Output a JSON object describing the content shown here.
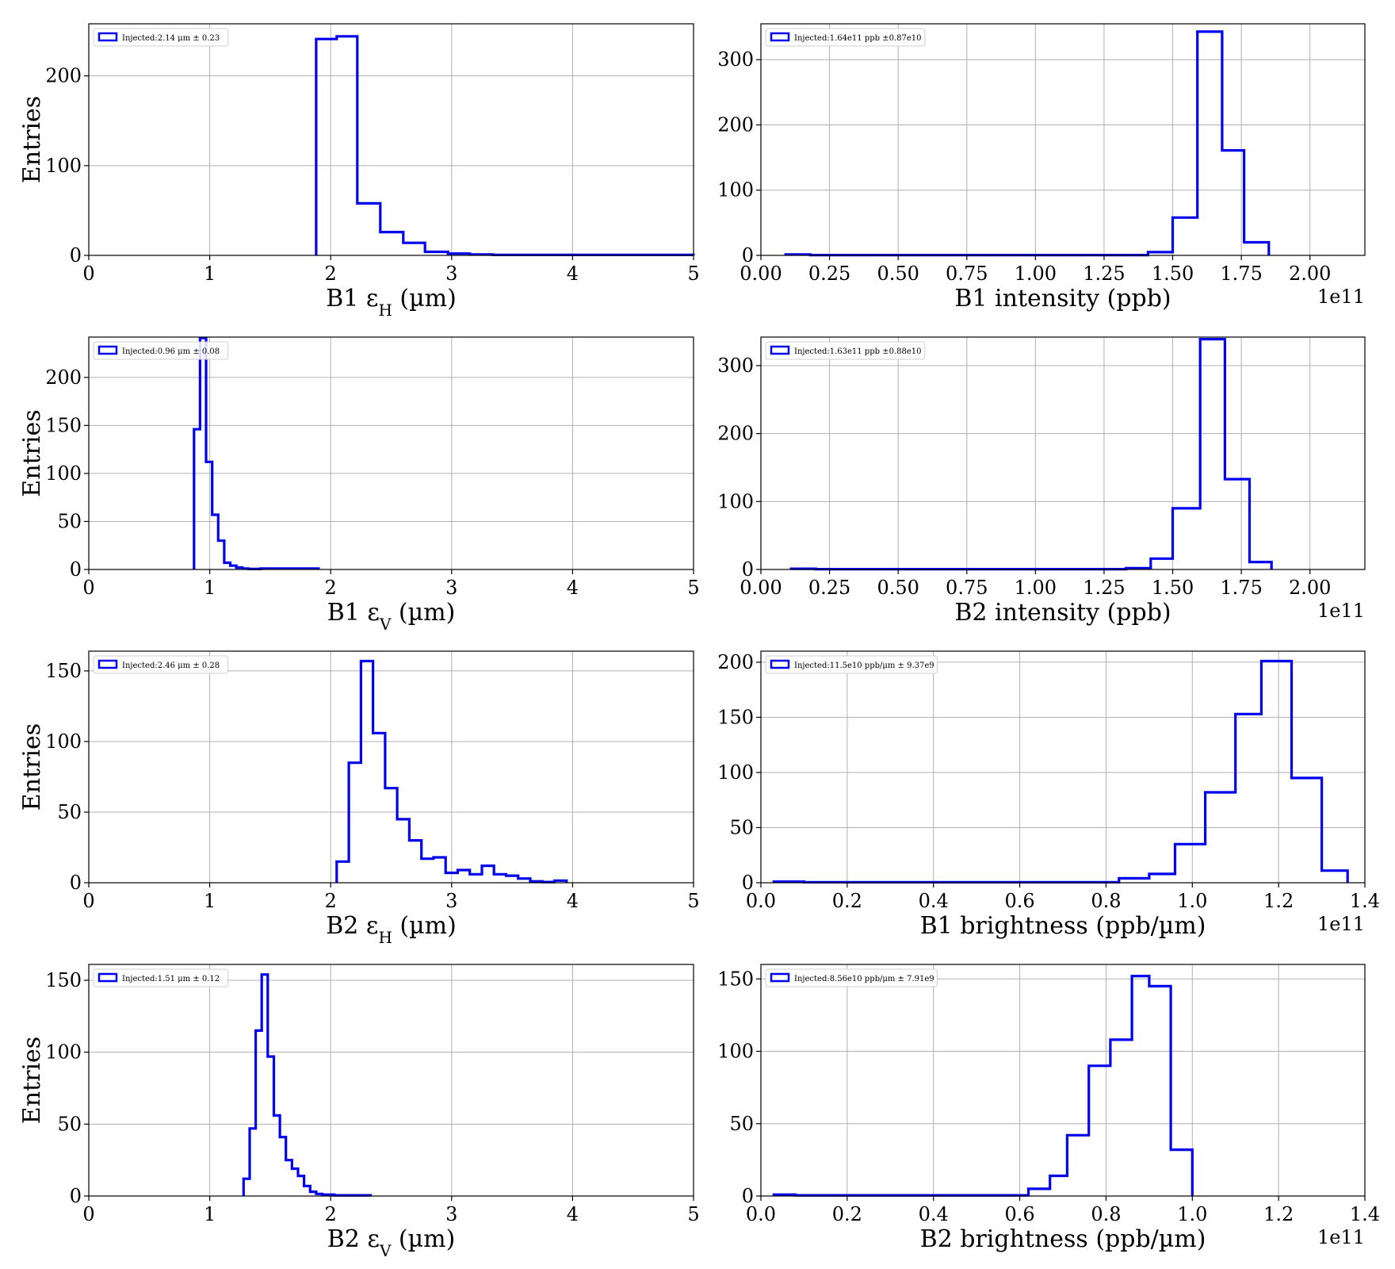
{
  "figure": {
    "legend_color": "#0000ee",
    "grid_color": "#b0b0b0"
  },
  "chart_data": [
    {
      "id": "b1-eps-h",
      "type": "histogram",
      "xlabel": "B1 εH (µm)",
      "xlabel_main": "B1 ε",
      "xlabel_sub": "H",
      "xlabel_unit": " (µm)",
      "ylabel": "Entries",
      "xlim": [
        0,
        5
      ],
      "ylim": [
        0,
        258
      ],
      "xticks": [
        0,
        1,
        2,
        3,
        4,
        5
      ],
      "xtick_labels": [
        "0",
        "1",
        "2",
        "3",
        "4",
        "5"
      ],
      "yticks": [
        0,
        100,
        200
      ],
      "ytick_labels": [
        "0",
        "100",
        "200"
      ],
      "offset_label": "",
      "grid": true,
      "legend_position": "top-left",
      "legend_label": "Injected:2.14 μm ± 0.23",
      "series": [
        {
          "color": "#0000ee",
          "edges": [
            1.88,
            2.05,
            2.22,
            2.41,
            2.6,
            2.78,
            2.97,
            3.15,
            3.34,
            5
          ],
          "values": [
            241,
            244,
            58,
            26,
            14,
            4,
            2,
            1,
            0.5
          ]
        }
      ]
    },
    {
      "id": "b1-intensity",
      "type": "histogram",
      "xlabel": "B1 intensity (ppb)",
      "xlabel_main": "B1 intensity (ppb)",
      "xlabel_sub": "",
      "xlabel_unit": "",
      "ylabel": "",
      "xlim": [
        0,
        2.2
      ],
      "ylim": [
        0,
        355
      ],
      "xticks": [
        0,
        0.25,
        0.5,
        0.75,
        1.0,
        1.25,
        1.5,
        1.75,
        2.0
      ],
      "xtick_labels": [
        "0.00",
        "0.25",
        "0.50",
        "0.75",
        "1.00",
        "1.25",
        "1.50",
        "1.75",
        "2.00"
      ],
      "yticks": [
        0,
        100,
        200,
        300
      ],
      "ytick_labels": [
        "0",
        "100",
        "200",
        "300"
      ],
      "offset_label": "1e11",
      "grid": true,
      "legend_position": "top-left",
      "legend_label": "Injected:1.64e11 ppb ±0.87e10",
      "series": [
        {
          "color": "#0000ee",
          "edges": [
            0.09,
            0.18,
            1.41,
            1.5,
            1.59,
            1.68,
            1.76,
            1.85
          ],
          "values": [
            1.5,
            0.5,
            5,
            58,
            343,
            161,
            20
          ]
        }
      ]
    },
    {
      "id": "b1-eps-v",
      "type": "histogram",
      "xlabel": "B1 εV (µm)",
      "xlabel_main": "B1 ε",
      "xlabel_sub": "V",
      "xlabel_unit": " (µm)",
      "ylabel": "Entries",
      "xlim": [
        0,
        5
      ],
      "ylim": [
        0,
        242
      ],
      "xticks": [
        0,
        1,
        2,
        3,
        4,
        5
      ],
      "xtick_labels": [
        "0",
        "1",
        "2",
        "3",
        "4",
        "5"
      ],
      "yticks": [
        0,
        50,
        100,
        150,
        200
      ],
      "ytick_labels": [
        "0",
        "50",
        "100",
        "150",
        "200"
      ],
      "offset_label": "",
      "grid": true,
      "legend_position": "top-left",
      "legend_label": "Injected:0.96 μm ± 0.08",
      "series": [
        {
          "color": "#0000ee",
          "edges": [
            0.87,
            0.92,
            0.97,
            1.02,
            1.07,
            1.12,
            1.17,
            1.22,
            1.27,
            1.32,
            1.42,
            1.9
          ],
          "values": [
            146,
            241,
            112,
            57,
            30,
            7,
            4,
            2,
            1,
            0.5,
            1
          ]
        }
      ]
    },
    {
      "id": "b2-intensity",
      "type": "histogram",
      "xlabel": "B2 intensity (ppb)",
      "xlabel_main": "B2 intensity (ppb)",
      "xlabel_sub": "",
      "xlabel_unit": "",
      "ylabel": "",
      "xlim": [
        0,
        2.2
      ],
      "ylim": [
        0,
        342
      ],
      "xticks": [
        0,
        0.25,
        0.5,
        0.75,
        1.0,
        1.25,
        1.5,
        1.75,
        2.0
      ],
      "xtick_labels": [
        "0.00",
        "0.25",
        "0.50",
        "0.75",
        "1.00",
        "1.25",
        "1.50",
        "1.75",
        "2.00"
      ],
      "yticks": [
        0,
        100,
        200,
        300
      ],
      "ytick_labels": [
        "0",
        "100",
        "200",
        "300"
      ],
      "offset_label": "1e11",
      "grid": true,
      "legend_position": "top-left",
      "legend_label": "Injected:1.63e11 ppb ±0.88e10",
      "series": [
        {
          "color": "#0000ee",
          "edges": [
            0.11,
            0.2,
            1.33,
            1.42,
            1.5,
            1.6,
            1.69,
            1.78,
            1.86
          ],
          "values": [
            1,
            0.5,
            2,
            16,
            90,
            339,
            133,
            11
          ]
        }
      ]
    },
    {
      "id": "b2-eps-h",
      "type": "histogram",
      "xlabel": "B2 εH (µm)",
      "xlabel_main": "B2 ε",
      "xlabel_sub": "H",
      "xlabel_unit": " (µm)",
      "ylabel": "Entries",
      "xlim": [
        0,
        5
      ],
      "ylim": [
        0,
        164
      ],
      "xticks": [
        0,
        1,
        2,
        3,
        4,
        5
      ],
      "xtick_labels": [
        "0",
        "1",
        "2",
        "3",
        "4",
        "5"
      ],
      "yticks": [
        0,
        50,
        100,
        150
      ],
      "ytick_labels": [
        "0",
        "50",
        "100",
        "150"
      ],
      "offset_label": "",
      "grid": true,
      "legend_position": "top-left",
      "legend_label": "Injected:2.46 μm ± 0.28",
      "series": [
        {
          "color": "#0000ee",
          "edges": [
            2.05,
            2.15,
            2.25,
            2.35,
            2.45,
            2.55,
            2.65,
            2.75,
            2.85,
            2.95,
            3.05,
            3.15,
            3.25,
            3.35,
            3.45,
            3.55,
            3.65,
            3.75,
            3.85,
            3.95
          ],
          "values": [
            15,
            85,
            157,
            106,
            67,
            45,
            30,
            17,
            18,
            7,
            9,
            6,
            12,
            6,
            5,
            3,
            1,
            0.5,
            1.5
          ]
        }
      ]
    },
    {
      "id": "b1-brightness",
      "type": "histogram",
      "xlabel": "B1 brightness (ppb/µm)",
      "xlabel_main": "B1 brightness (ppb/µm)",
      "xlabel_sub": "",
      "xlabel_unit": "",
      "ylabel": "",
      "xlim": [
        0,
        1.4
      ],
      "ylim": [
        0,
        210
      ],
      "xticks": [
        0,
        0.2,
        0.4,
        0.6,
        0.8,
        1.0,
        1.2,
        1.4
      ],
      "xtick_labels": [
        "0.0",
        "0.2",
        "0.4",
        "0.6",
        "0.8",
        "1.0",
        "1.2",
        "1.4"
      ],
      "yticks": [
        0,
        50,
        100,
        150,
        200
      ],
      "ytick_labels": [
        "0",
        "50",
        "100",
        "150",
        "200"
      ],
      "offset_label": "1e11",
      "grid": true,
      "legend_position": "top-left",
      "legend_label": "Injected:11.5e10 ppb/μm ± 9.37e9",
      "series": [
        {
          "color": "#0000ee",
          "edges": [
            0.03,
            0.1,
            0.83,
            0.9,
            0.96,
            1.03,
            1.1,
            1.16,
            1.23,
            1.3,
            1.36
          ],
          "values": [
            1,
            0.5,
            4,
            8,
            35,
            82,
            153,
            201,
            95,
            11
          ]
        }
      ]
    },
    {
      "id": "b2-eps-v",
      "type": "histogram",
      "xlabel": "B2 εV (µm)",
      "xlabel_main": "B2 ε",
      "xlabel_sub": "V",
      "xlabel_unit": " (µm)",
      "ylabel": "Entries",
      "xlim": [
        0,
        5
      ],
      "ylim": [
        0,
        161
      ],
      "xticks": [
        0,
        1,
        2,
        3,
        4,
        5
      ],
      "xtick_labels": [
        "0",
        "1",
        "2",
        "3",
        "4",
        "5"
      ],
      "yticks": [
        0,
        50,
        100,
        150
      ],
      "ytick_labels": [
        "0",
        "50",
        "100",
        "150"
      ],
      "offset_label": "",
      "grid": true,
      "legend_position": "top-left",
      "legend_label": "Injected:1.51 μm ± 0.12",
      "series": [
        {
          "color": "#0000ee",
          "edges": [
            1.28,
            1.33,
            1.38,
            1.43,
            1.48,
            1.53,
            1.58,
            1.63,
            1.68,
            1.73,
            1.78,
            1.83,
            1.88,
            1.93,
            1.98,
            2.03,
            2.33
          ],
          "values": [
            12,
            47,
            115,
            154,
            97,
            56,
            41,
            25,
            19,
            14,
            7,
            3,
            1.5,
            1,
            1,
            0.5
          ]
        }
      ]
    },
    {
      "id": "b2-brightness",
      "type": "histogram",
      "xlabel": "B2 brightness (ppb/µm)",
      "xlabel_main": "B2 brightness (ppb/µm)",
      "xlabel_sub": "",
      "xlabel_unit": "",
      "ylabel": "",
      "xlim": [
        0,
        1.4
      ],
      "ylim": [
        0,
        160
      ],
      "xticks": [
        0,
        0.2,
        0.4,
        0.6,
        0.8,
        1.0,
        1.2,
        1.4
      ],
      "xtick_labels": [
        "0.0",
        "0.2",
        "0.4",
        "0.6",
        "0.8",
        "1.0",
        "1.2",
        "1.4"
      ],
      "yticks": [
        0,
        50,
        100,
        150
      ],
      "ytick_labels": [
        "0",
        "50",
        "100",
        "150"
      ],
      "offset_label": "1e11",
      "grid": true,
      "legend_position": "top-left",
      "legend_label": "Injected:8.56e10 ppb/μm ± 7.91e9",
      "series": [
        {
          "color": "#0000ee",
          "edges": [
            0.03,
            0.08,
            0.62,
            0.67,
            0.71,
            0.76,
            0.81,
            0.86,
            0.9,
            0.95,
            1.0
          ],
          "values": [
            1,
            0.5,
            5,
            14,
            42,
            90,
            108,
            152,
            145,
            32
          ]
        }
      ]
    }
  ]
}
